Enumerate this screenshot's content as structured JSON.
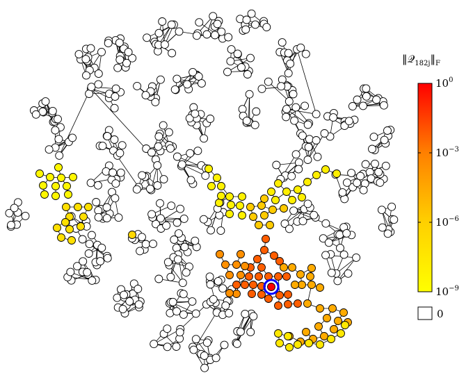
{
  "colorbar": {
    "title": "‖𝒬182j‖F",
    "title_base": "‖𝒬",
    "title_sub": "182j",
    "title_tail": "‖",
    "title_norm_sub": "F",
    "tick_base": "10",
    "ticks": [
      {
        "exp": "0",
        "value": 1
      },
      {
        "exp": "−3",
        "value": 0.001
      },
      {
        "exp": "−6",
        "value": 1e-06
      },
      {
        "exp": "−9",
        "value": 1e-09
      }
    ],
    "zero_label": "0",
    "scale": "log",
    "gradient_colors": [
      "#ff0000",
      "#ff8000",
      "#ffd000",
      "#ffff00"
    ],
    "zero_color": "#ffffff"
  },
  "graph": {
    "node_fill_default": "#ffffff",
    "node_stroke": "#000000",
    "edge_color": "#000000",
    "highlighted_node": {
      "marker": "ring",
      "color": "#0000ff"
    }
  }
}
